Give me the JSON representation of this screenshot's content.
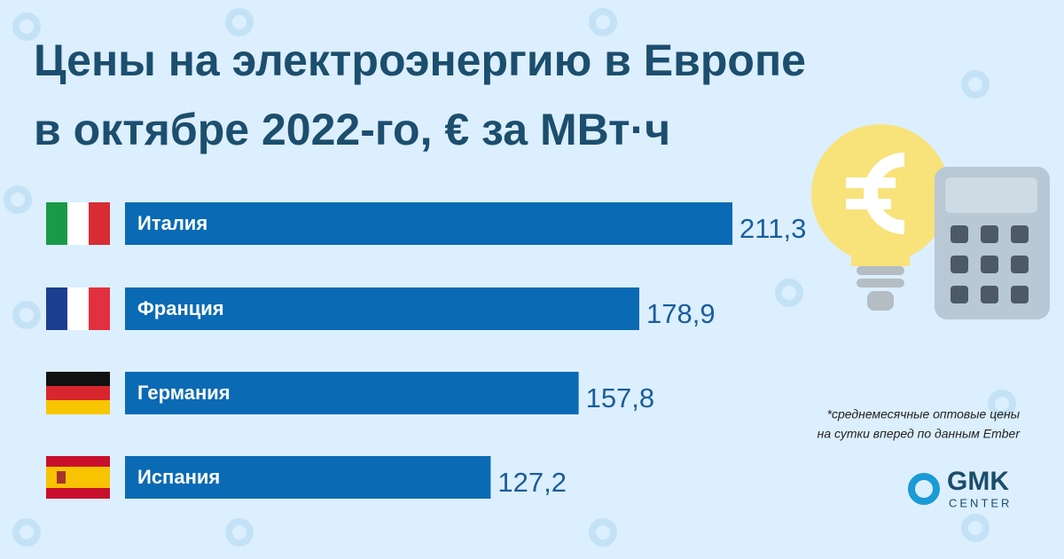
{
  "chart_data": {
    "type": "bar",
    "orientation": "horizontal",
    "title": [
      "Цены на электроэнергию в Европе",
      "в октябре 2022-го, € за МВт·ч"
    ],
    "categories": [
      "Италия",
      "Франция",
      "Германия",
      "Испания"
    ],
    "values": [
      211.3,
      178.9,
      157.8,
      127.2
    ],
    "value_labels": [
      "211,3",
      "178,9",
      "157,8",
      "127,2"
    ],
    "color": "#0a6ab4",
    "note": [
      "*среднемесячные оптовые цены",
      "на сутки вперед по данным Ember"
    ],
    "logo": [
      "GMK",
      "CENTER"
    ]
  }
}
